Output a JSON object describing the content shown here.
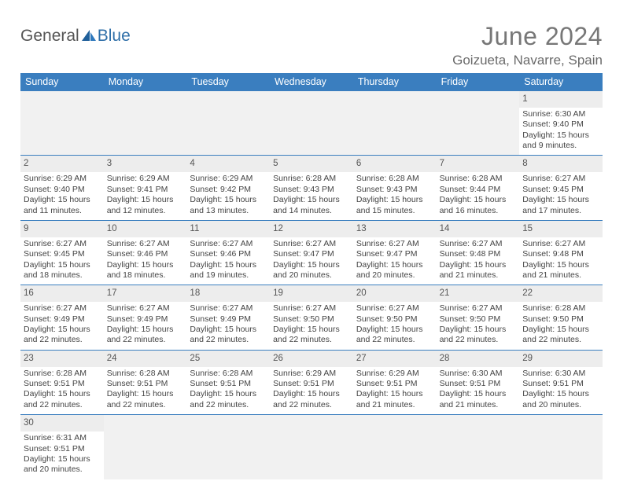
{
  "logo": {
    "text1": "General",
    "text2": "Blue"
  },
  "title": "June 2024",
  "location": "Goizueta, Navarre, Spain",
  "colors": {
    "header_bg": "#3a7ebf",
    "header_text": "#ffffff",
    "empty_cell_bg": "#f1f1f1",
    "daynum_bg": "#ededed",
    "border": "#3a7ebf",
    "title_color": "#777777",
    "loc_color": "#6a6a6a",
    "text_color": "#444444"
  },
  "weekdays": [
    "Sunday",
    "Monday",
    "Tuesday",
    "Wednesday",
    "Thursday",
    "Friday",
    "Saturday"
  ],
  "weeks": [
    [
      {
        "empty": true
      },
      {
        "empty": true
      },
      {
        "empty": true
      },
      {
        "empty": true
      },
      {
        "empty": true
      },
      {
        "empty": true
      },
      {
        "num": "1",
        "sr": "Sunrise: 6:30 AM",
        "ss": "Sunset: 9:40 PM",
        "d1": "Daylight: 15 hours",
        "d2": "and 9 minutes."
      }
    ],
    [
      {
        "num": "2",
        "sr": "Sunrise: 6:29 AM",
        "ss": "Sunset: 9:40 PM",
        "d1": "Daylight: 15 hours",
        "d2": "and 11 minutes."
      },
      {
        "num": "3",
        "sr": "Sunrise: 6:29 AM",
        "ss": "Sunset: 9:41 PM",
        "d1": "Daylight: 15 hours",
        "d2": "and 12 minutes."
      },
      {
        "num": "4",
        "sr": "Sunrise: 6:29 AM",
        "ss": "Sunset: 9:42 PM",
        "d1": "Daylight: 15 hours",
        "d2": "and 13 minutes."
      },
      {
        "num": "5",
        "sr": "Sunrise: 6:28 AM",
        "ss": "Sunset: 9:43 PM",
        "d1": "Daylight: 15 hours",
        "d2": "and 14 minutes."
      },
      {
        "num": "6",
        "sr": "Sunrise: 6:28 AM",
        "ss": "Sunset: 9:43 PM",
        "d1": "Daylight: 15 hours",
        "d2": "and 15 minutes."
      },
      {
        "num": "7",
        "sr": "Sunrise: 6:28 AM",
        "ss": "Sunset: 9:44 PM",
        "d1": "Daylight: 15 hours",
        "d2": "and 16 minutes."
      },
      {
        "num": "8",
        "sr": "Sunrise: 6:27 AM",
        "ss": "Sunset: 9:45 PM",
        "d1": "Daylight: 15 hours",
        "d2": "and 17 minutes."
      }
    ],
    [
      {
        "num": "9",
        "sr": "Sunrise: 6:27 AM",
        "ss": "Sunset: 9:45 PM",
        "d1": "Daylight: 15 hours",
        "d2": "and 18 minutes."
      },
      {
        "num": "10",
        "sr": "Sunrise: 6:27 AM",
        "ss": "Sunset: 9:46 PM",
        "d1": "Daylight: 15 hours",
        "d2": "and 18 minutes."
      },
      {
        "num": "11",
        "sr": "Sunrise: 6:27 AM",
        "ss": "Sunset: 9:46 PM",
        "d1": "Daylight: 15 hours",
        "d2": "and 19 minutes."
      },
      {
        "num": "12",
        "sr": "Sunrise: 6:27 AM",
        "ss": "Sunset: 9:47 PM",
        "d1": "Daylight: 15 hours",
        "d2": "and 20 minutes."
      },
      {
        "num": "13",
        "sr": "Sunrise: 6:27 AM",
        "ss": "Sunset: 9:47 PM",
        "d1": "Daylight: 15 hours",
        "d2": "and 20 minutes."
      },
      {
        "num": "14",
        "sr": "Sunrise: 6:27 AM",
        "ss": "Sunset: 9:48 PM",
        "d1": "Daylight: 15 hours",
        "d2": "and 21 minutes."
      },
      {
        "num": "15",
        "sr": "Sunrise: 6:27 AM",
        "ss": "Sunset: 9:48 PM",
        "d1": "Daylight: 15 hours",
        "d2": "and 21 minutes."
      }
    ],
    [
      {
        "num": "16",
        "sr": "Sunrise: 6:27 AM",
        "ss": "Sunset: 9:49 PM",
        "d1": "Daylight: 15 hours",
        "d2": "and 22 minutes."
      },
      {
        "num": "17",
        "sr": "Sunrise: 6:27 AM",
        "ss": "Sunset: 9:49 PM",
        "d1": "Daylight: 15 hours",
        "d2": "and 22 minutes."
      },
      {
        "num": "18",
        "sr": "Sunrise: 6:27 AM",
        "ss": "Sunset: 9:49 PM",
        "d1": "Daylight: 15 hours",
        "d2": "and 22 minutes."
      },
      {
        "num": "19",
        "sr": "Sunrise: 6:27 AM",
        "ss": "Sunset: 9:50 PM",
        "d1": "Daylight: 15 hours",
        "d2": "and 22 minutes."
      },
      {
        "num": "20",
        "sr": "Sunrise: 6:27 AM",
        "ss": "Sunset: 9:50 PM",
        "d1": "Daylight: 15 hours",
        "d2": "and 22 minutes."
      },
      {
        "num": "21",
        "sr": "Sunrise: 6:27 AM",
        "ss": "Sunset: 9:50 PM",
        "d1": "Daylight: 15 hours",
        "d2": "and 22 minutes."
      },
      {
        "num": "22",
        "sr": "Sunrise: 6:28 AM",
        "ss": "Sunset: 9:50 PM",
        "d1": "Daylight: 15 hours",
        "d2": "and 22 minutes."
      }
    ],
    [
      {
        "num": "23",
        "sr": "Sunrise: 6:28 AM",
        "ss": "Sunset: 9:51 PM",
        "d1": "Daylight: 15 hours",
        "d2": "and 22 minutes."
      },
      {
        "num": "24",
        "sr": "Sunrise: 6:28 AM",
        "ss": "Sunset: 9:51 PM",
        "d1": "Daylight: 15 hours",
        "d2": "and 22 minutes."
      },
      {
        "num": "25",
        "sr": "Sunrise: 6:28 AM",
        "ss": "Sunset: 9:51 PM",
        "d1": "Daylight: 15 hours",
        "d2": "and 22 minutes."
      },
      {
        "num": "26",
        "sr": "Sunrise: 6:29 AM",
        "ss": "Sunset: 9:51 PM",
        "d1": "Daylight: 15 hours",
        "d2": "and 22 minutes."
      },
      {
        "num": "27",
        "sr": "Sunrise: 6:29 AM",
        "ss": "Sunset: 9:51 PM",
        "d1": "Daylight: 15 hours",
        "d2": "and 21 minutes."
      },
      {
        "num": "28",
        "sr": "Sunrise: 6:30 AM",
        "ss": "Sunset: 9:51 PM",
        "d1": "Daylight: 15 hours",
        "d2": "and 21 minutes."
      },
      {
        "num": "29",
        "sr": "Sunrise: 6:30 AM",
        "ss": "Sunset: 9:51 PM",
        "d1": "Daylight: 15 hours",
        "d2": "and 20 minutes."
      }
    ],
    [
      {
        "num": "30",
        "sr": "Sunrise: 6:31 AM",
        "ss": "Sunset: 9:51 PM",
        "d1": "Daylight: 15 hours",
        "d2": "and 20 minutes."
      },
      {
        "empty": true
      },
      {
        "empty": true
      },
      {
        "empty": true
      },
      {
        "empty": true
      },
      {
        "empty": true
      },
      {
        "empty": true
      }
    ]
  ]
}
